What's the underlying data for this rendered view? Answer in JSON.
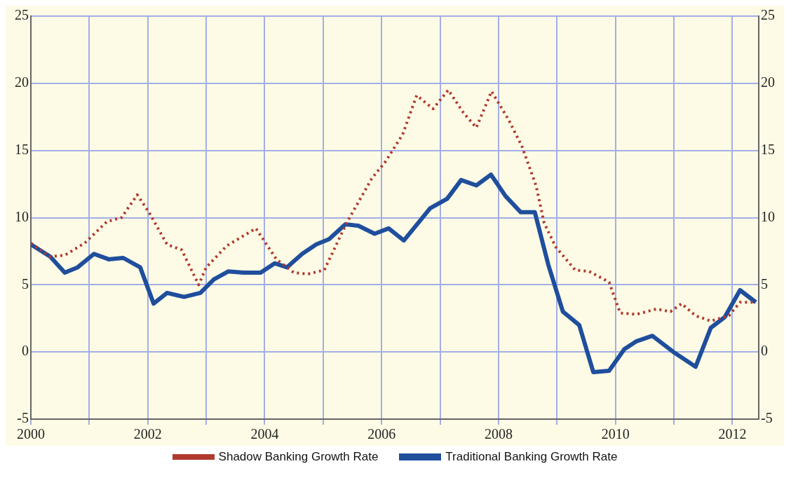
{
  "chart_data": {
    "type": "line",
    "xlim": [
      2000,
      2012.45
    ],
    "xticks": [
      2000,
      {
        "value": 2001,
        "label": null
      },
      2002,
      {
        "value": 2003,
        "label": null
      },
      2004,
      {
        "value": 2005,
        "label": null
      },
      2006,
      {
        "value": 2007,
        "label": null
      },
      2008,
      {
        "value": 2009,
        "label": null
      },
      2010,
      {
        "value": 2011,
        "label": null
      },
      2012
    ],
    "ylim": [
      -5,
      25
    ],
    "yticks": [
      -5,
      0,
      5,
      10,
      15,
      20,
      25
    ],
    "y2lim": [
      -5,
      25
    ],
    "y2ticks": [
      -5,
      0,
      5,
      10,
      15,
      20,
      25
    ],
    "grid": true,
    "legend": "bottom",
    "marker": "none",
    "series": [
      {
        "name": "Shadow Banking Growth Rate",
        "color": "#b03a2e",
        "line_style": "dotted",
        "x": [
          2000,
          2000.33,
          2000.58,
          2000.92,
          2001.3,
          2001.55,
          2001.82,
          2002.02,
          2002.33,
          2002.58,
          2002.87,
          2003.0,
          2003.35,
          2003.85,
          2004.2,
          2004.5,
          2004.74,
          2005.02,
          2005.4,
          2005.83,
          2006.07,
          2006.36,
          2006.6,
          2006.88,
          2007.14,
          2007.4,
          2007.62,
          2007.88,
          2008.17,
          2008.4,
          2008.64,
          2008.78,
          2008.98,
          2009.31,
          2009.55,
          2009.89,
          2010.08,
          2010.36,
          2010.7,
          2010.94,
          2011.13,
          2011.37,
          2011.63,
          2011.94,
          2012.13,
          2012.4
        ],
        "values": [
          8.1,
          7.1,
          7.2,
          8.1,
          9.7,
          10.0,
          11.7,
          10.4,
          8.0,
          7.6,
          5.0,
          6.3,
          7.9,
          9.2,
          6.9,
          5.9,
          5.8,
          6.1,
          9.6,
          12.9,
          14.2,
          16.2,
          19.1,
          18.1,
          19.5,
          17.8,
          16.7,
          19.4,
          17.3,
          15.3,
          12.4,
          9.6,
          7.8,
          6.1,
          6.0,
          5.2,
          2.9,
          2.8,
          3.2,
          3.0,
          3.6,
          2.7,
          2.3,
          2.7,
          3.7,
          3.7
        ]
      },
      {
        "name": "Traditional Banking Growth Rate",
        "color": "#1f4e9c",
        "line_style": "solid",
        "x": [
          2000,
          2000.33,
          2000.58,
          2000.8,
          2001.08,
          2001.33,
          2001.58,
          2001.87,
          2002.1,
          2002.33,
          2002.62,
          2002.9,
          2003.13,
          2003.38,
          2003.64,
          2003.93,
          2004.17,
          2004.38,
          2004.64,
          2004.88,
          2005.1,
          2005.38,
          2005.6,
          2005.88,
          2006.12,
          2006.38,
          2006.83,
          2007.12,
          2007.36,
          2007.62,
          2007.87,
          2008.12,
          2008.38,
          2008.62,
          2008.85,
          2009.1,
          2009.38,
          2009.62,
          2009.89,
          2010.15,
          2010.36,
          2010.63,
          2010.99,
          2011.37,
          2011.63,
          2011.87,
          2012.13,
          2012.4
        ],
        "values": [
          8.0,
          7.1,
          5.9,
          6.3,
          7.3,
          6.9,
          7.0,
          6.3,
          3.6,
          4.4,
          4.1,
          4.4,
          5.4,
          6.0,
          5.9,
          5.9,
          6.6,
          6.3,
          7.3,
          8.0,
          8.4,
          9.5,
          9.4,
          8.8,
          9.2,
          8.3,
          10.7,
          11.4,
          12.8,
          12.4,
          13.2,
          11.6,
          10.4,
          10.4,
          6.5,
          3.0,
          2.0,
          -1.5,
          -1.4,
          0.2,
          0.8,
          1.2,
          0.0,
          -1.1,
          1.8,
          2.6,
          4.6,
          3.7
        ]
      }
    ]
  }
}
